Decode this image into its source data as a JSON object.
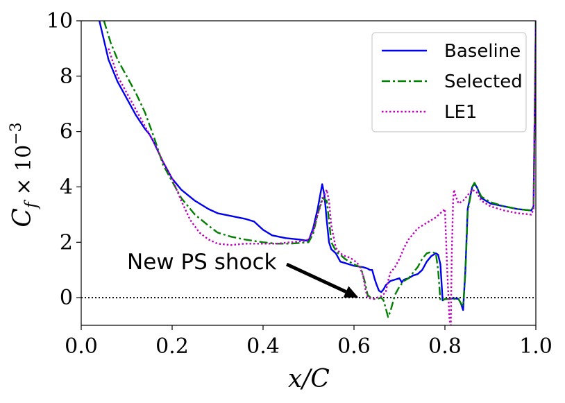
{
  "chart_data": {
    "type": "line",
    "xlabel": "x/C",
    "ylabel": "C_f × 10^-3",
    "xlim": [
      0.0,
      1.0
    ],
    "ylim": [
      -1.0,
      10.0
    ],
    "xticks": [
      "0.0",
      "0.2",
      "0.4",
      "0.6",
      "0.8",
      "1.0"
    ],
    "yticks": [
      "0",
      "2",
      "4",
      "6",
      "8",
      "10"
    ],
    "legend_position": "top-right",
    "reference_line": {
      "y": 0,
      "style": "dotted",
      "color": "#000000"
    },
    "annotation": {
      "text": "New PS shock",
      "target": [
        0.61,
        0.0
      ]
    },
    "series": [
      {
        "name": "Baseline",
        "color": "#0000ee",
        "dash": "solid",
        "x": [
          0.04,
          0.06,
          0.08,
          0.1,
          0.12,
          0.14,
          0.15,
          0.16,
          0.18,
          0.2,
          0.22,
          0.25,
          0.28,
          0.3,
          0.33,
          0.36,
          0.38,
          0.4,
          0.42,
          0.45,
          0.48,
          0.5,
          0.51,
          0.52,
          0.53,
          0.535,
          0.54,
          0.545,
          0.55,
          0.56,
          0.565,
          0.57,
          0.58,
          0.6,
          0.62,
          0.63,
          0.635,
          0.64,
          0.645,
          0.65,
          0.655,
          0.66,
          0.665,
          0.67,
          0.68,
          0.69,
          0.7,
          0.705,
          0.71,
          0.72,
          0.73,
          0.74,
          0.75,
          0.76,
          0.77,
          0.78,
          0.785,
          0.79,
          0.795,
          0.8,
          0.81,
          0.82,
          0.83,
          0.835,
          0.84,
          0.845,
          0.85,
          0.86,
          0.865,
          0.87,
          0.88,
          0.9,
          0.93,
          0.96,
          0.99,
          0.995,
          1.0
        ],
        "y": [
          10.0,
          8.6,
          7.8,
          7.2,
          6.6,
          6.1,
          5.9,
          5.6,
          4.9,
          4.3,
          3.9,
          3.5,
          3.2,
          3.05,
          2.95,
          2.85,
          2.75,
          2.45,
          2.25,
          2.15,
          2.1,
          2.05,
          2.5,
          3.2,
          4.1,
          3.7,
          2.8,
          2.0,
          1.75,
          1.6,
          1.45,
          1.3,
          1.25,
          1.15,
          1.1,
          1.05,
          1.0,
          1.0,
          0.7,
          0.45,
          0.25,
          0.2,
          0.3,
          0.45,
          0.6,
          0.65,
          0.7,
          0.55,
          0.65,
          0.7,
          0.8,
          0.85,
          1.0,
          1.3,
          1.5,
          1.6,
          1.55,
          1.2,
          -0.1,
          -0.05,
          -0.05,
          -0.02,
          -0.05,
          -0.2,
          -0.45,
          1.0,
          3.2,
          4.0,
          4.1,
          4.0,
          3.6,
          3.4,
          3.3,
          3.2,
          3.15,
          3.3,
          10.0
        ]
      },
      {
        "name": "Selected",
        "color": "#007f00",
        "dash": "dashdot",
        "x": [
          0.05,
          0.065,
          0.08,
          0.1,
          0.12,
          0.14,
          0.16,
          0.18,
          0.2,
          0.22,
          0.25,
          0.28,
          0.3,
          0.33,
          0.36,
          0.4,
          0.43,
          0.46,
          0.5,
          0.51,
          0.52,
          0.53,
          0.54,
          0.545,
          0.55,
          0.56,
          0.565,
          0.57,
          0.58,
          0.6,
          0.615,
          0.62,
          0.625,
          0.63,
          0.64,
          0.65,
          0.66,
          0.665,
          0.67,
          0.675,
          0.68,
          0.69,
          0.7,
          0.71,
          0.72,
          0.73,
          0.74,
          0.75,
          0.76,
          0.77,
          0.78,
          0.785,
          0.79,
          0.795,
          0.8,
          0.81,
          0.82,
          0.83,
          0.835,
          0.84,
          0.845,
          0.85,
          0.86,
          0.865,
          0.87,
          0.88,
          0.9,
          0.93,
          0.96,
          0.99,
          0.995,
          1.0
        ],
        "y": [
          10.0,
          9.2,
          8.6,
          8.0,
          7.4,
          6.7,
          5.8,
          4.8,
          4.2,
          3.6,
          3.0,
          2.6,
          2.35,
          2.2,
          2.1,
          2.0,
          1.95,
          1.95,
          2.0,
          2.3,
          3.0,
          3.6,
          3.5,
          2.8,
          2.0,
          1.7,
          1.6,
          1.55,
          1.4,
          1.2,
          1.1,
          0.8,
          0.5,
          0.1,
          -0.05,
          -0.05,
          0.0,
          -0.1,
          -0.4,
          -0.7,
          -0.5,
          0.1,
          0.4,
          0.6,
          0.7,
          0.9,
          1.1,
          1.4,
          1.6,
          1.65,
          1.6,
          1.0,
          -0.1,
          -0.1,
          -0.05,
          -0.05,
          -0.05,
          -0.05,
          -0.2,
          -0.3,
          0.9,
          3.1,
          4.0,
          4.15,
          4.0,
          3.65,
          3.45,
          3.3,
          3.2,
          3.15,
          3.3,
          10.0
        ]
      },
      {
        "name": "LE1",
        "color": "#bf00bf",
        "dash": "dotted",
        "x": [
          0.06,
          0.08,
          0.1,
          0.12,
          0.14,
          0.16,
          0.18,
          0.2,
          0.22,
          0.24,
          0.26,
          0.28,
          0.3,
          0.33,
          0.36,
          0.39,
          0.4,
          0.43,
          0.46,
          0.49,
          0.5,
          0.51,
          0.52,
          0.53,
          0.54,
          0.545,
          0.55,
          0.56,
          0.57,
          0.58,
          0.59,
          0.6,
          0.61,
          0.62,
          0.625,
          0.63,
          0.64,
          0.65,
          0.66,
          0.67,
          0.675,
          0.68,
          0.69,
          0.7,
          0.71,
          0.72,
          0.74,
          0.76,
          0.78,
          0.8,
          0.805,
          0.81,
          0.813,
          0.815,
          0.818,
          0.82,
          0.823,
          0.83,
          0.84,
          0.85,
          0.86,
          0.87,
          0.88,
          0.9,
          0.93,
          0.96,
          0.99,
          0.995,
          1.0
        ],
        "y": [
          9.0,
          8.0,
          7.4,
          6.8,
          6.2,
          5.6,
          4.9,
          4.3,
          3.5,
          2.8,
          2.35,
          2.1,
          1.95,
          1.9,
          1.95,
          1.95,
          1.95,
          1.95,
          2.0,
          2.05,
          2.1,
          2.4,
          3.0,
          3.5,
          3.9,
          3.5,
          2.6,
          1.8,
          1.6,
          1.5,
          1.45,
          1.35,
          1.2,
          0.8,
          0.3,
          0.0,
          -0.05,
          0.0,
          0.05,
          0.2,
          0.6,
          0.9,
          1.1,
          1.4,
          1.8,
          2.1,
          2.5,
          2.7,
          2.9,
          3.2,
          1.0,
          -0.8,
          -1.0,
          1.5,
          3.5,
          3.9,
          3.7,
          3.4,
          3.5,
          3.7,
          3.9,
          3.8,
          3.5,
          3.3,
          3.15,
          3.05,
          3.0,
          3.2,
          10.0
        ]
      }
    ]
  }
}
